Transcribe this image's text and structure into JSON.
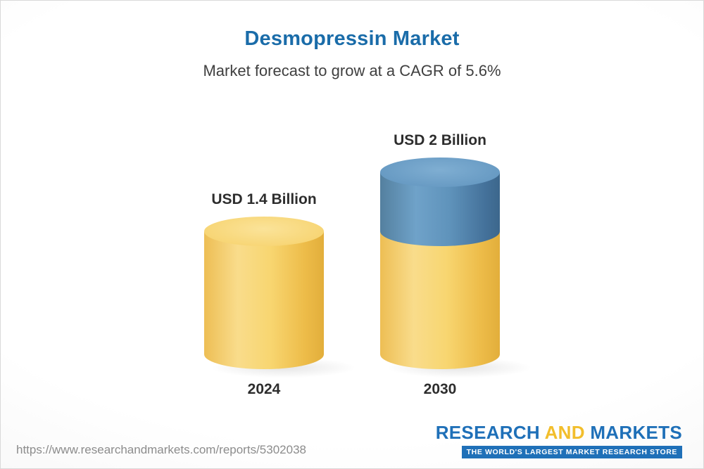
{
  "header": {
    "title": "Desmopressin Market",
    "subtitle": "Market forecast to grow at a CAGR of 5.6%"
  },
  "chart_data": {
    "type": "bar",
    "title": "Desmopressin Market",
    "subtitle": "Market forecast to grow at a CAGR of 5.6%",
    "cagr_percent": 5.6,
    "categories": [
      "2024",
      "2030"
    ],
    "values": [
      1.4,
      2
    ],
    "value_labels": [
      "USD 1.4 Billion",
      "USD 2 Billion"
    ],
    "unit": "USD Billion",
    "legend_position": "none",
    "grid": false,
    "colors": {
      "base_segment": "#F7CE64",
      "growth_segment": "#5B8DB5"
    }
  },
  "footer": {
    "url": "https://www.researchandmarkets.com/reports/5302038",
    "logo": {
      "research": "RESEARCH",
      "and": "AND",
      "markets": "MARKETS",
      "tagline": "THE WORLD'S LARGEST MARKET RESEARCH STORE"
    }
  }
}
